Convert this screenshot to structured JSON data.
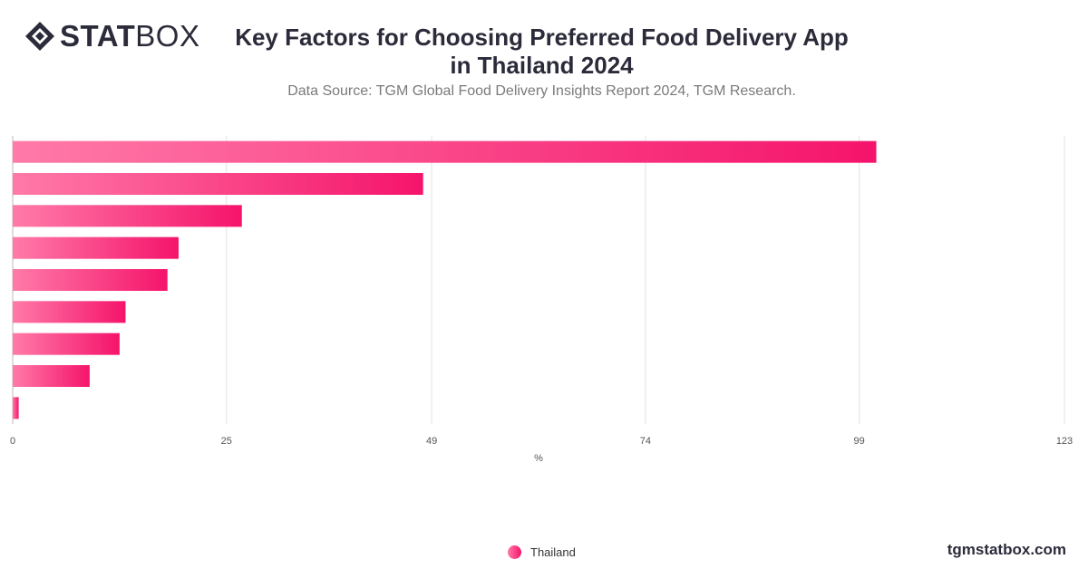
{
  "brand": {
    "bold": "STAT",
    "light": "BOX",
    "icon": "diamond-logo-icon"
  },
  "title_line1": "Key Factors for Choosing Preferred Food Delivery App",
  "title_line2": "in Thailand 2024",
  "subtitle": "Data Source: TGM Global Food Delivery Insights Report 2024, TGM Research.",
  "site": "tgmstatbox.com",
  "chart_data": {
    "type": "bar",
    "orientation": "horizontal",
    "xlabel": "%",
    "xlim": [
      0,
      123
    ],
    "xticks": [
      0,
      25,
      49,
      74,
      99,
      123
    ],
    "grid": true,
    "legend_placement": "bottom-center",
    "series": [
      {
        "name": "Thailand",
        "color_start": "#ff7aa8",
        "color_end": "#f5146b",
        "values": [
          101,
          48,
          26.8,
          19.4,
          18.1,
          13.2,
          12.5,
          9.0,
          0.7
        ]
      }
    ]
  }
}
